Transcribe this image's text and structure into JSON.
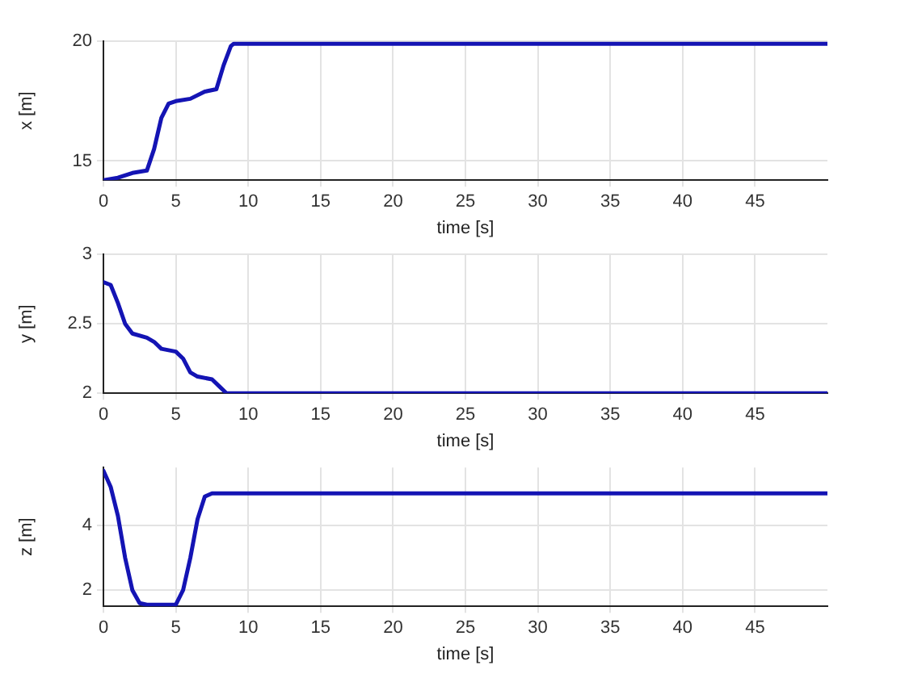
{
  "chart_data": [
    {
      "type": "line",
      "xlabel": "time [s]",
      "ylabel": "x [m]",
      "xlim": [
        0,
        50
      ],
      "xticks": [
        0,
        5,
        10,
        15,
        20,
        25,
        30,
        35,
        40,
        45
      ],
      "ylim": [
        14.2,
        20
      ],
      "yticks": [
        15,
        20
      ],
      "grid": true,
      "legend": false,
      "marker": "none",
      "line_style": "solid",
      "series": [
        {
          "color": "#1414b4",
          "x": [
            0,
            1,
            2,
            3,
            3.5,
            4,
            4.5,
            5,
            6,
            7,
            7.8,
            8.3,
            8.8,
            9,
            50
          ],
          "values": [
            14.2,
            14.3,
            14.5,
            14.6,
            15.5,
            16.8,
            17.4,
            17.5,
            17.6,
            17.9,
            18,
            19,
            19.8,
            19.9,
            19.9
          ]
        }
      ]
    },
    {
      "type": "line",
      "xlabel": "time [s]",
      "ylabel": "y [m]",
      "xlim": [
        0,
        50
      ],
      "xticks": [
        0,
        5,
        10,
        15,
        20,
        25,
        30,
        35,
        40,
        45
      ],
      "ylim": [
        2,
        3
      ],
      "yticks": [
        2,
        2.5,
        3
      ],
      "grid": true,
      "legend": false,
      "marker": "none",
      "line_style": "solid",
      "series": [
        {
          "color": "#1414b4",
          "x": [
            0,
            0.5,
            1,
            1.5,
            2,
            3,
            3.5,
            4,
            5,
            5.5,
            6,
            6.5,
            7.5,
            8,
            8.5,
            50
          ],
          "values": [
            2.8,
            2.78,
            2.65,
            2.5,
            2.43,
            2.4,
            2.37,
            2.32,
            2.3,
            2.25,
            2.15,
            2.12,
            2.1,
            2.05,
            2,
            2
          ]
        }
      ]
    },
    {
      "type": "line",
      "xlabel": "time [s]",
      "ylabel": "z [m]",
      "xlim": [
        0,
        50
      ],
      "xticks": [
        0,
        5,
        10,
        15,
        20,
        25,
        30,
        35,
        40,
        45
      ],
      "ylim": [
        1.5,
        5.8
      ],
      "yticks": [
        2,
        4
      ],
      "grid": true,
      "legend": false,
      "marker": "none",
      "line_style": "solid",
      "series": [
        {
          "color": "#1414b4",
          "x": [
            0,
            0.5,
            1,
            1.5,
            2,
            2.5,
            3,
            5,
            5.5,
            6,
            6.5,
            7,
            7.5,
            50
          ],
          "values": [
            5.7,
            5.2,
            4.3,
            3,
            2,
            1.6,
            1.55,
            1.55,
            2,
            3,
            4.2,
            4.9,
            5,
            5
          ]
        }
      ]
    }
  ]
}
